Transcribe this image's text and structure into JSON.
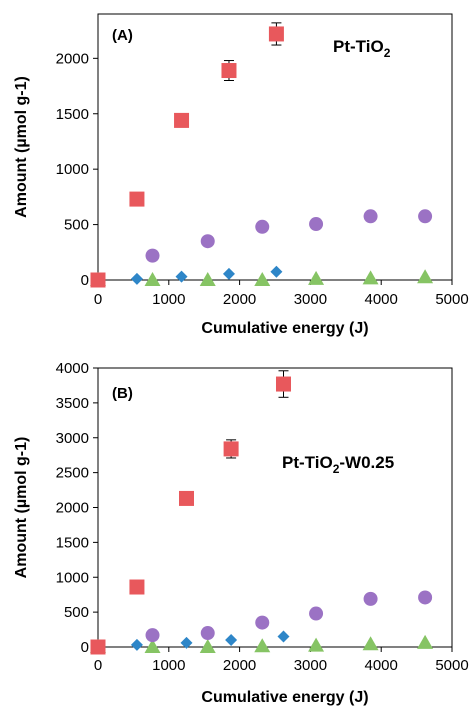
{
  "colors": {
    "square": "#e8585c",
    "diamond": "#2e86c8",
    "circle": "#9b72c4",
    "triangle": "#86c464"
  },
  "chart_data": [
    {
      "type": "scatter",
      "panel_label": "(A)",
      "title_main": "Pt-TiO",
      "title_sub": "2",
      "title_after": "",
      "xlabel": "Cumulative energy (J)",
      "ylabel": "Amount (µmol g-1)",
      "xlim": [
        0,
        5000
      ],
      "ylim": [
        0,
        2400
      ],
      "xticks": [
        0,
        1000,
        2000,
        3000,
        4000,
        5000
      ],
      "yticks": [
        0,
        500,
        1000,
        1500,
        2000
      ],
      "series": [
        {
          "marker": "square",
          "x": [
            0,
            550,
            1180,
            1850,
            2520
          ],
          "y": [
            0,
            730,
            1440,
            1890,
            2220
          ],
          "err": [
            0,
            0,
            60,
            90,
            100
          ]
        },
        {
          "marker": "diamond",
          "x": [
            0,
            550,
            1180,
            1850,
            2520
          ],
          "y": [
            0,
            10,
            30,
            55,
            75
          ]
        },
        {
          "marker": "circle",
          "x": [
            0,
            770,
            1550,
            2320,
            3080,
            3850,
            4620
          ],
          "y": [
            0,
            220,
            350,
            480,
            505,
            575,
            575
          ]
        },
        {
          "marker": "triangle",
          "x": [
            0,
            770,
            1550,
            2320,
            3080,
            3850,
            4620
          ],
          "y": [
            0,
            0,
            0,
            0,
            10,
            15,
            25
          ]
        }
      ]
    },
    {
      "type": "scatter",
      "panel_label": "(B)",
      "title_main": "Pt-TiO",
      "title_sub": "2",
      "title_after": "-W0.25",
      "xlabel": "Cumulative energy (J)",
      "ylabel": "Amount (µmol g-1)",
      "xlim": [
        0,
        5000
      ],
      "ylim": [
        0,
        4000
      ],
      "xticks": [
        0,
        1000,
        2000,
        3000,
        4000,
        5000
      ],
      "yticks": [
        0,
        500,
        1000,
        1500,
        2000,
        2500,
        3000,
        3500,
        4000
      ],
      "series": [
        {
          "marker": "square",
          "x": [
            0,
            550,
            1250,
            1880,
            2620
          ],
          "y": [
            0,
            860,
            2130,
            2840,
            3770
          ],
          "err": [
            0,
            0,
            80,
            130,
            190
          ]
        },
        {
          "marker": "diamond",
          "x": [
            0,
            550,
            1250,
            1880,
            2620
          ],
          "y": [
            0,
            30,
            60,
            100,
            150
          ]
        },
        {
          "marker": "circle",
          "x": [
            0,
            770,
            1550,
            2320,
            3080,
            3850,
            4620
          ],
          "y": [
            0,
            170,
            200,
            350,
            480,
            690,
            710
          ]
        },
        {
          "marker": "triangle",
          "x": [
            0,
            770,
            1550,
            2320,
            3080,
            3850,
            4620
          ],
          "y": [
            0,
            0,
            0,
            10,
            20,
            40,
            60
          ]
        }
      ]
    }
  ]
}
